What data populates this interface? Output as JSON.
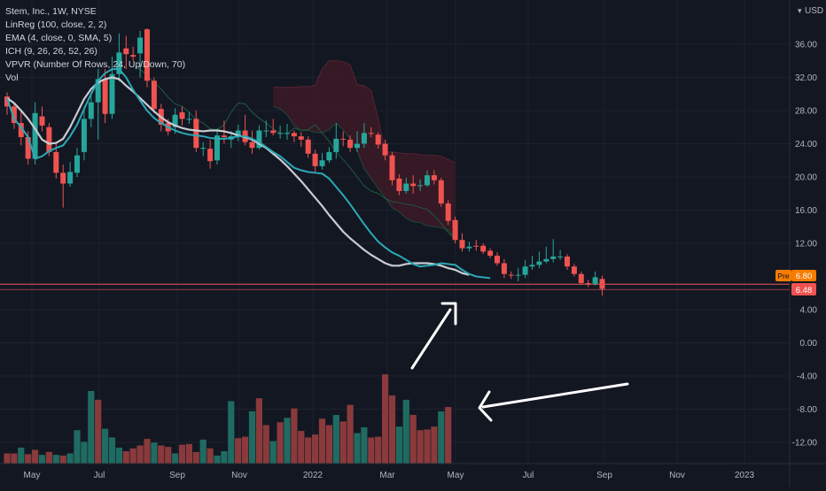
{
  "legend": {
    "title": "Stem, Inc., 1W, NYSE",
    "indicators": [
      "LinReg (100, close, 2, 2)",
      "EMA (4, close, 0, SMA, 5)",
      "ICH (9, 26, 26, 52, 26)",
      "VPVR (Number Of Rows, 24, Up/Down, 70)",
      "Vol"
    ]
  },
  "currency": "USD",
  "price_scale": {
    "ticks": [
      "36.00",
      "32.00",
      "28.00",
      "24.00",
      "20.00",
      "16.00",
      "12.00",
      "4.00",
      "0.00",
      "-4.00",
      "-8.00",
      "-12.00"
    ]
  },
  "time_scale": {
    "labels": [
      "May",
      "Jul",
      "Sep",
      "Nov",
      "2022",
      "Mar",
      "May",
      "Jul",
      "Sep",
      "Nov",
      "2023"
    ]
  },
  "badges": {
    "premarket_label": "Pre",
    "premarket_value": "6.80",
    "last_value": "6.48"
  },
  "colors": {
    "background": "#131722",
    "up": "#26a69a",
    "down": "#ef5350",
    "ema": "#2aa9b5",
    "linreg": "#c8cbd2",
    "premarket": "#f57c00",
    "cloud": "#3a1a25"
  },
  "chart_data": {
    "type": "candlestick",
    "title": "Stem, Inc., 1W, NYSE",
    "yrange": [
      -15,
      39
    ],
    "candles": [
      [
        29.7,
        28.5,
        30.2,
        27.5
      ],
      [
        28.5,
        26.5,
        29.0,
        25.8
      ],
      [
        26.5,
        24.8,
        28.0,
        23.8
      ],
      [
        24.8,
        22.2,
        25.5,
        21.5
      ],
      [
        22.2,
        27.7,
        29.0,
        21.5
      ],
      [
        27.3,
        26.2,
        28.5,
        25.5
      ],
      [
        26.0,
        23.0,
        26.5,
        22.5
      ],
      [
        23.0,
        20.5,
        24.0,
        19.8
      ],
      [
        20.5,
        19.2,
        21.5,
        16.3
      ],
      [
        19.2,
        20.6,
        21.8,
        18.8
      ],
      [
        20.5,
        22.6,
        23.5,
        20.0
      ],
      [
        23.0,
        27.0,
        28.5,
        22.0
      ],
      [
        27.0,
        29.0,
        30.0,
        26.0
      ],
      [
        29.0,
        31.8,
        33.0,
        24.5
      ],
      [
        31.8,
        27.6,
        33.0,
        26.5
      ],
      [
        27.6,
        32.4,
        34.5,
        27.0
      ],
      [
        32.4,
        35.0,
        37.3,
        31.5
      ],
      [
        35.5,
        34.8,
        37.0,
        33.0
      ],
      [
        34.7,
        34.5,
        35.7,
        34.0
      ],
      [
        34.9,
        36.8,
        37.6,
        32.0
      ],
      [
        37.8,
        31.6,
        37.9,
        30.8
      ],
      [
        31.6,
        28.2,
        32.0,
        27.7
      ],
      [
        28.2,
        26.3,
        28.8,
        25.5
      ],
      [
        26.5,
        25.5,
        27.0,
        25.0
      ],
      [
        26.0,
        27.5,
        28.3,
        25.2
      ],
      [
        27.8,
        27.0,
        28.5,
        26.2
      ],
      [
        27.0,
        27.0,
        27.8,
        26.4
      ],
      [
        27.0,
        23.5,
        28.0,
        23.0
      ],
      [
        23.5,
        23.5,
        24.2,
        22.5
      ],
      [
        23.4,
        21.9,
        24.5,
        21.0
      ],
      [
        22.0,
        25.0,
        25.8,
        21.5
      ],
      [
        25.0,
        24.8,
        26.8,
        24.0
      ],
      [
        24.5,
        24.9,
        25.5,
        23.5
      ],
      [
        24.9,
        25.6,
        26.3,
        24.3
      ],
      [
        25.6,
        24.2,
        27.5,
        23.8
      ],
      [
        24.2,
        23.5,
        25.6,
        22.8
      ],
      [
        23.5,
        25.6,
        26.2,
        23.3
      ],
      [
        25.6,
        25.6,
        26.8,
        24.8
      ],
      [
        25.6,
        25.3,
        27.0,
        25.0
      ],
      [
        25.2,
        25.3,
        26.2,
        24.6
      ],
      [
        25.2,
        25.3,
        26.4,
        24.5
      ],
      [
        25.3,
        24.9,
        25.6,
        24.2
      ],
      [
        24.9,
        24.5,
        25.4,
        23.6
      ],
      [
        24.5,
        22.8,
        24.9,
        22.3
      ],
      [
        22.8,
        21.3,
        23.3,
        20.6
      ],
      [
        21.3,
        22.0,
        22.9,
        20.9
      ],
      [
        22.0,
        23.0,
        23.6,
        21.7
      ],
      [
        23.0,
        24.6,
        26.5,
        22.2
      ],
      [
        24.6,
        24.5,
        25.5,
        23.7
      ],
      [
        24.5,
        23.5,
        25.0,
        23.0
      ],
      [
        23.5,
        24.0,
        25.5,
        23.0
      ],
      [
        24.0,
        25.3,
        26.5,
        23.5
      ],
      [
        25.3,
        25.2,
        26.0,
        24.8
      ],
      [
        25.1,
        23.9,
        25.4,
        23.4
      ],
      [
        24.0,
        22.6,
        24.5,
        22.0
      ],
      [
        22.6,
        19.6,
        23.0,
        19.0
      ],
      [
        19.8,
        18.3,
        20.3,
        17.8
      ],
      [
        18.3,
        19.2,
        19.9,
        18.0
      ],
      [
        19.2,
        18.9,
        20.2,
        18.0
      ],
      [
        18.9,
        19.0,
        19.7,
        18.3
      ],
      [
        19.0,
        20.2,
        20.8,
        18.8
      ],
      [
        20.2,
        19.6,
        20.8,
        19.1
      ],
      [
        19.6,
        16.8,
        19.9,
        16.4
      ],
      [
        16.8,
        14.7,
        17.2,
        14.2
      ],
      [
        14.8,
        12.4,
        15.2,
        12.0
      ],
      [
        12.4,
        11.4,
        13.2,
        11.0
      ],
      [
        11.4,
        11.6,
        12.2,
        11.0
      ],
      [
        11.7,
        11.6,
        12.4,
        11.1
      ],
      [
        11.7,
        11.0,
        12.0,
        10.7
      ],
      [
        11.1,
        10.5,
        11.4,
        10.2
      ],
      [
        10.5,
        9.6,
        10.9,
        9.3
      ],
      [
        9.6,
        8.3,
        10.1,
        7.8
      ],
      [
        8.2,
        8.1,
        8.6,
        7.7
      ],
      [
        8.1,
        8.2,
        9.0,
        7.4
      ],
      [
        8.2,
        9.2,
        10.0,
        7.8
      ],
      [
        9.2,
        9.4,
        10.5,
        8.8
      ],
      [
        9.4,
        9.8,
        11.0,
        9.0
      ],
      [
        9.8,
        10.1,
        11.6,
        9.6
      ],
      [
        10.1,
        10.4,
        12.5,
        9.7
      ],
      [
        10.4,
        10.4,
        11.2,
        10.0
      ],
      [
        10.4,
        9.2,
        10.7,
        8.8
      ],
      [
        9.2,
        8.3,
        9.5,
        8.0
      ],
      [
        8.3,
        7.2,
        8.6,
        7.0
      ],
      [
        7.2,
        7.1,
        7.6,
        6.7
      ],
      [
        7.1,
        7.9,
        8.6,
        6.9
      ],
      [
        7.7,
        6.5,
        8.1,
        5.7
      ]
    ],
    "ema": [
      29.5,
      27.0,
      26.0,
      24.8,
      22.2,
      22.5,
      23.1,
      23.5,
      23.8,
      24.9,
      26.3,
      28.2,
      30.0,
      31.6,
      32.5,
      33.0,
      33.0,
      32.0,
      30.5,
      29.2,
      28.0,
      27.1,
      26.5,
      26.0,
      25.6,
      25.3,
      25.1,
      25.0,
      24.9,
      24.7,
      24.6,
      24.6,
      24.7,
      24.9,
      24.9,
      24.6,
      24.2,
      23.6,
      23.0,
      22.5,
      21.8,
      21.1,
      20.8,
      20.6,
      20.5,
      20.4,
      19.8,
      18.8,
      17.8,
      16.7,
      15.5,
      14.3,
      13.2,
      12.2,
      11.5,
      10.9,
      10.5,
      10.0,
      9.5,
      9.2,
      9.3,
      9.4,
      9.6,
      9.5,
      9.4,
      8.8,
      8.3,
      8.0,
      7.9,
      7.8
    ],
    "linreg": [
      29.5,
      28.9,
      28.0,
      27.0,
      25.8,
      24.5,
      24.0,
      24.1,
      24.6,
      26.0,
      27.7,
      29.4,
      30.6,
      31.4,
      31.8,
      32.0,
      31.8,
      31.0,
      30.3,
      29.5,
      28.7,
      27.9,
      27.2,
      26.6,
      26.2,
      25.9,
      25.7,
      25.6,
      25.5,
      25.6,
      25.6,
      25.5,
      25.3,
      25.0,
      24.8,
      24.5,
      24.0,
      23.5,
      22.8,
      22.1,
      21.3,
      20.4,
      19.5,
      18.5,
      17.5,
      16.5,
      15.4,
      14.4,
      13.4,
      12.6,
      11.9,
      11.2,
      10.6,
      10.1,
      9.6,
      9.3,
      9.3,
      9.5,
      9.6,
      9.6,
      9.6,
      9.5,
      9.3,
      9.0,
      8.8,
      8.4,
      8.2
    ],
    "ichimoku_lagging": [
      [
        18,
        33.3
      ],
      [
        19,
        33.0
      ],
      [
        22,
        30.6
      ],
      [
        23,
        29.6
      ],
      [
        24,
        28.8
      ],
      [
        25,
        28.5
      ],
      [
        26,
        27.8
      ],
      [
        27,
        26.9
      ],
      [
        28,
        26.5
      ],
      [
        29,
        25.8
      ],
      [
        30,
        25.7
      ],
      [
        31,
        26.3
      ],
      [
        32,
        27.8
      ],
      [
        33,
        28.9
      ],
      [
        34,
        28.8
      ],
      [
        35,
        27.8
      ],
      [
        36,
        27.1
      ],
      [
        37,
        26.5
      ],
      [
        38,
        25.8
      ],
      [
        39,
        25.3
      ],
      [
        40,
        25.2
      ],
      [
        41,
        25.9
      ],
      [
        42,
        25.6
      ],
      [
        43,
        25.7
      ],
      [
        44,
        26.3
      ],
      [
        45,
        25.3
      ],
      [
        46,
        24.3
      ],
      [
        47,
        23.0
      ],
      [
        48,
        22.1
      ],
      [
        49,
        21.1
      ],
      [
        50,
        20.0
      ],
      [
        51,
        18.9
      ],
      [
        52,
        18.3
      ],
      [
        53,
        18.0
      ],
      [
        54,
        17.4
      ],
      [
        55,
        17.0
      ],
      [
        56,
        16.9
      ],
      [
        57,
        16.7
      ],
      [
        58,
        16.6
      ],
      [
        59,
        16.3
      ],
      [
        60,
        16.1
      ],
      [
        61,
        15.3
      ],
      [
        62,
        14.4
      ],
      [
        63,
        13.3
      ],
      [
        64,
        12.5
      ]
    ],
    "cloud_upper": [
      [
        38,
        30.8
      ],
      [
        39,
        30.8
      ],
      [
        40,
        30.8
      ],
      [
        41,
        30.8
      ],
      [
        42,
        30.9
      ],
      [
        43,
        30.9
      ],
      [
        44,
        31.0
      ],
      [
        45,
        33.0
      ],
      [
        46,
        34.0
      ],
      [
        47,
        34.0
      ],
      [
        48,
        33.9
      ],
      [
        49,
        33.5
      ],
      [
        50,
        31.1
      ],
      [
        51,
        31.0
      ],
      [
        52,
        30.4
      ],
      [
        53,
        27.0
      ],
      [
        54,
        23.0
      ],
      [
        55,
        23.0
      ],
      [
        56,
        22.9
      ],
      [
        57,
        22.8
      ],
      [
        58,
        22.8
      ],
      [
        59,
        22.7
      ],
      [
        60,
        22.6
      ],
      [
        61,
        22.6
      ],
      [
        62,
        22.5
      ],
      [
        63,
        22.1
      ],
      [
        64,
        21.7
      ]
    ],
    "cloud_lower": [
      [
        38,
        28.5
      ],
      [
        39,
        28.2
      ],
      [
        40,
        27.5
      ],
      [
        41,
        26.2
      ],
      [
        42,
        25.6
      ],
      [
        43,
        25.6
      ],
      [
        44,
        25.4
      ],
      [
        45,
        25.3
      ],
      [
        46,
        25.7
      ],
      [
        47,
        26.5
      ],
      [
        48,
        25.7
      ],
      [
        49,
        24.6
      ],
      [
        50,
        23.2
      ],
      [
        51,
        21.0
      ],
      [
        52,
        19.8
      ],
      [
        53,
        18.6
      ],
      [
        54,
        17.5
      ],
      [
        55,
        16.3
      ],
      [
        56,
        15.8
      ],
      [
        57,
        15.0
      ],
      [
        58,
        14.6
      ],
      [
        59,
        14.5
      ],
      [
        60,
        14.1
      ],
      [
        61,
        14.0
      ],
      [
        62,
        13.9
      ],
      [
        63,
        13.6
      ],
      [
        64,
        12.6
      ]
    ],
    "volume_relative": [
      0.14,
      0.14,
      0.22,
      0.13,
      0.19,
      0.12,
      0.16,
      0.12,
      0.11,
      0.14,
      0.46,
      0.3,
      1.0,
      0.88,
      0.48,
      0.36,
      0.22,
      0.17,
      0.21,
      0.25,
      0.34,
      0.29,
      0.25,
      0.23,
      0.14,
      0.26,
      0.27,
      0.16,
      0.33,
      0.21,
      0.11,
      0.17,
      0.86,
      0.35,
      0.37,
      0.72,
      0.9,
      0.53,
      0.31,
      0.57,
      0.63,
      0.76,
      0.45,
      0.36,
      0.4,
      0.62,
      0.53,
      0.67,
      0.58,
      0.81,
      0.42,
      0.5,
      0.36,
      0.37,
      1.23,
      0.94,
      0.51,
      0.88,
      0.67,
      0.46,
      0.47,
      0.51,
      0.72,
      0.78
    ],
    "volume_up": [
      0,
      0,
      1,
      0,
      0,
      1,
      0,
      1,
      0,
      1,
      1,
      1,
      1,
      0,
      1,
      1,
      1,
      0,
      0,
      0,
      0,
      1,
      0,
      0,
      1,
      0,
      0,
      0,
      1,
      0,
      1,
      1,
      1,
      0,
      0,
      1,
      0,
      0,
      1,
      0,
      1,
      0,
      0,
      0,
      0,
      0,
      0,
      1,
      0,
      0,
      1,
      1,
      0,
      0,
      0,
      0,
      1,
      1,
      0,
      0,
      0,
      0,
      1,
      0
    ],
    "last_price": 6.48,
    "premarket_price": 6.8
  }
}
